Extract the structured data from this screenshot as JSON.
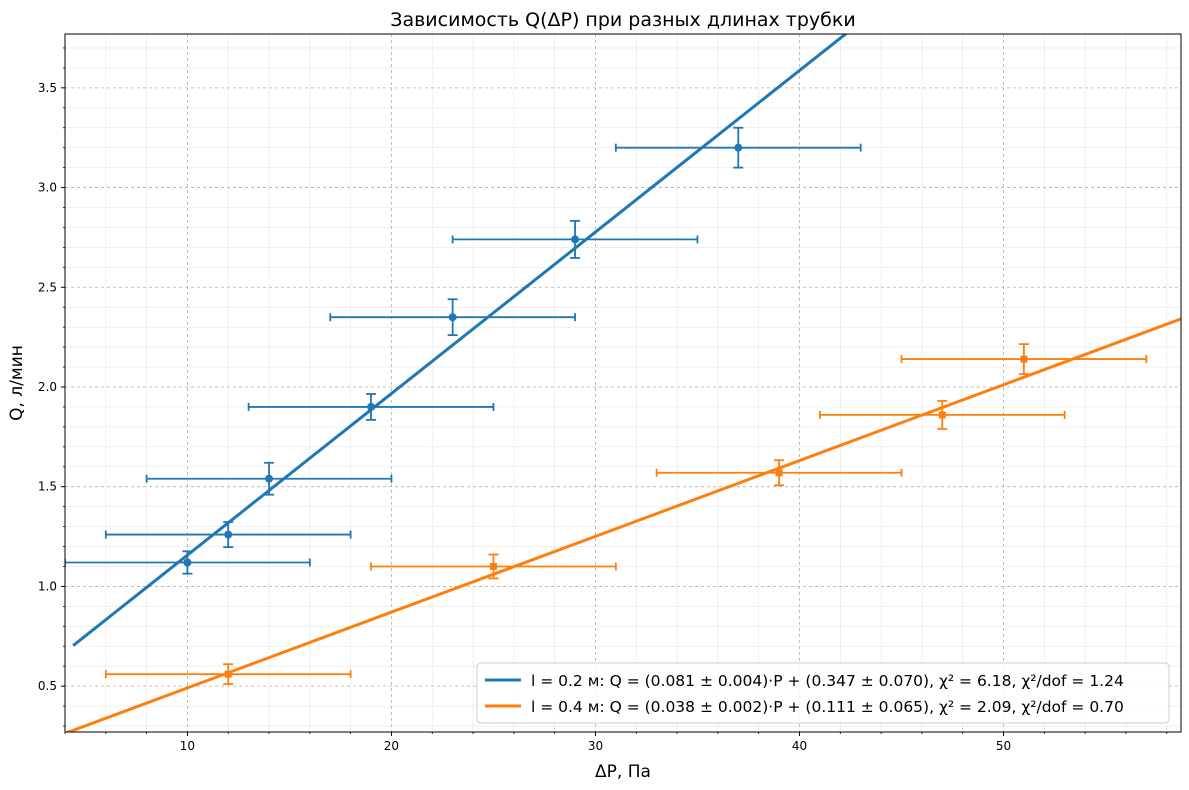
{
  "chart_data": {
    "type": "scatter",
    "title": "Зависимость Q(ΔP) при разных длинах трубки",
    "xlabel": "ΔP, Па",
    "ylabel": "Q, л/мин",
    "xlim": [
      4,
      58.7
    ],
    "ylim": [
      0.27,
      3.77
    ],
    "xticks": [
      10,
      20,
      30,
      40,
      50
    ],
    "yticks": [
      0.5,
      1.0,
      1.5,
      2.0,
      2.5,
      3.0,
      3.5
    ],
    "xtick_labels": [
      "10",
      "20",
      "30",
      "40",
      "50"
    ],
    "ytick_labels": [
      "0.5",
      "1.0",
      "1.5",
      "2.0",
      "2.5",
      "3.0",
      "3.5"
    ],
    "grid": true,
    "minor_grid": true,
    "legend_position": "bottom-right",
    "series": [
      {
        "name": "l = 0.2 м: Q = (0.081 ± 0.004)·P + (0.347 ± 0.070), χ² = 6.18, χ²/dof = 1.24",
        "color": "#1f77b4",
        "x": [
          10,
          12,
          14,
          19,
          23,
          29,
          37
        ],
        "y": [
          1.12,
          1.26,
          1.54,
          1.9,
          2.35,
          2.74,
          3.2
        ],
        "x_err": [
          6,
          6,
          6,
          6,
          6,
          6,
          6
        ],
        "y_err": [
          0.056,
          0.063,
          0.08,
          0.065,
          0.09,
          0.093,
          0.1
        ],
        "fit": {
          "slope": 0.081,
          "intercept": 0.347,
          "x_range": [
            4.4,
            42.5
          ]
        }
      },
      {
        "name": "l = 0.4 м: Q = (0.038 ± 0.002)·P + (0.111 ± 0.065), χ² = 2.09, χ²/dof = 0.70",
        "color": "#ff7f0e",
        "x": [
          12,
          25,
          39,
          47,
          51
        ],
        "y": [
          0.56,
          1.1,
          1.57,
          1.86,
          2.14
        ],
        "x_err": [
          6,
          6,
          6,
          6,
          6
        ],
        "y_err": [
          0.05,
          0.06,
          0.063,
          0.07,
          0.075
        ],
        "fit": {
          "slope": 0.038,
          "intercept": 0.111,
          "x_range": [
            4,
            58.7
          ]
        }
      }
    ]
  }
}
